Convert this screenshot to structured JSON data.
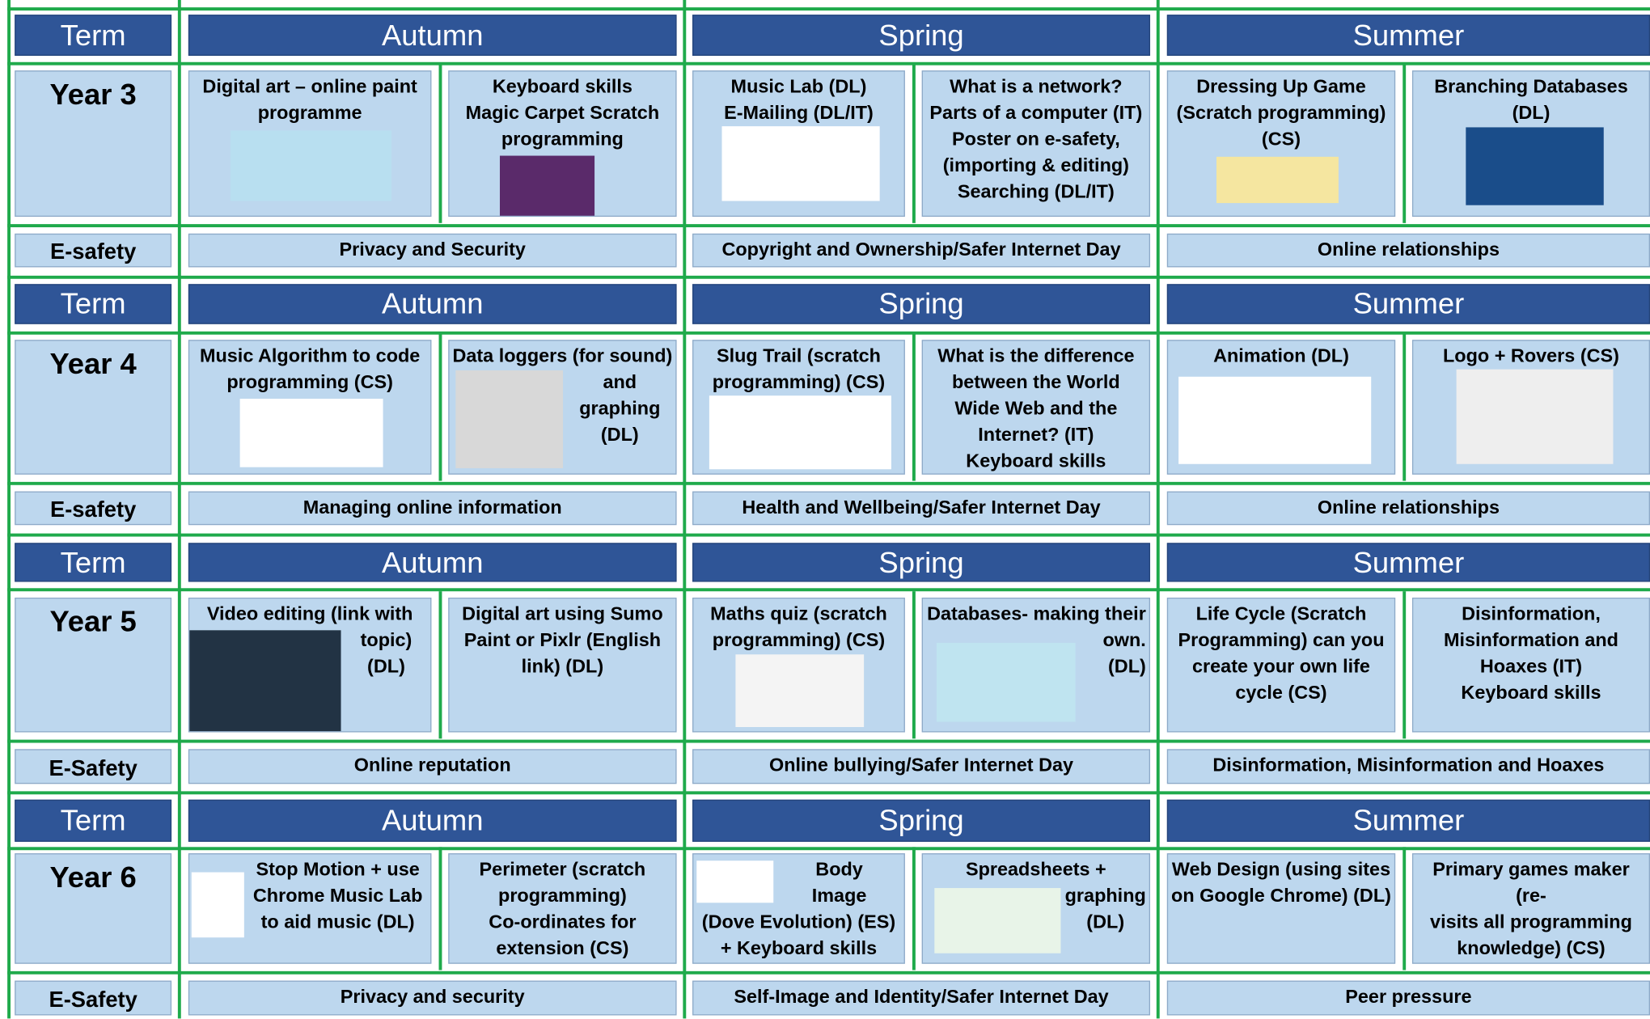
{
  "blocks": [
    {
      "term": "Term",
      "seasons": [
        "Autumn",
        "Spring",
        "Summer"
      ],
      "year": "Year 3",
      "units": [
        [
          "Digital art – online paint",
          "programme"
        ],
        [
          "Keyboard skills",
          "Magic Carpet Scratch",
          "programming"
        ],
        [
          "Music Lab (DL)",
          "E-Mailing (DL/IT)"
        ],
        [
          "What is a network?",
          "Parts of a computer (IT)",
          "Poster on e-safety,",
          "(importing & editing)",
          "Searching (DL/IT)"
        ],
        [
          "Dressing Up Game",
          "(Scratch programming)",
          "(CS)"
        ],
        [
          "Branching Databases",
          "(DL)"
        ]
      ],
      "esafety_label": "E-safety",
      "esafety": [
        "Privacy and Security",
        "Copyright and Ownership/Safer Internet Day",
        "Online relationships"
      ]
    },
    {
      "term": "Term",
      "seasons": [
        "Autumn",
        "Spring",
        "Summer"
      ],
      "year": "Year 4",
      "units": [
        [
          "Music Algorithm to code",
          "programming (CS)"
        ],
        [
          "Data loggers (for sound)",
          "and",
          "graphing",
          "(DL)"
        ],
        [
          "Slug Trail (scratch",
          "programming) (CS)"
        ],
        [
          "What is the difference",
          "between the World",
          "Wide Web and the",
          "Internet? (IT)",
          "Keyboard skills"
        ],
        [
          "Animation (DL)"
        ],
        [
          "Logo + Rovers (CS)"
        ]
      ],
      "esafety_label": "E-safety",
      "esafety": [
        "Managing online information",
        "Health and Wellbeing/Safer Internet Day",
        "Online relationships"
      ]
    },
    {
      "term": "Term",
      "seasons": [
        "Autumn",
        "Spring",
        "Summer"
      ],
      "year": "Year 5",
      "units": [
        [
          "Video editing (link with",
          "topic)",
          "(DL)"
        ],
        [
          "Digital art using Sumo",
          "Paint or Pixlr (English",
          "link) (DL)"
        ],
        [
          "Maths quiz (scratch",
          "programming) (CS)"
        ],
        [
          "Databases- making their",
          "own.",
          "(DL)"
        ],
        [
          "Life Cycle (Scratch",
          "Programming) can you",
          "create your own life",
          "cycle (CS)"
        ],
        [
          "Disinformation,",
          "Misinformation and",
          "Hoaxes (IT)",
          "Keyboard skills"
        ]
      ],
      "esafety_label": "E-Safety",
      "esafety": [
        "Online reputation",
        "Online bullying/Safer Internet Day",
        "Disinformation, Misinformation and Hoaxes"
      ]
    },
    {
      "term": "Term",
      "seasons": [
        "Autumn",
        "Spring",
        "Summer"
      ],
      "year": "Year 6",
      "units": [
        [
          "Stop Motion + use",
          "Chrome Music Lab",
          "to aid music (DL)"
        ],
        [
          "Perimeter (scratch",
          "programming)",
          "Co-ordinates for",
          "extension (CS)"
        ],
        [
          "Body",
          "Image",
          "(Dove Evolution) (ES)",
          "+ Keyboard skills"
        ],
        [
          "Spreadsheets + graphing",
          "(DL)"
        ],
        [
          "Web Design (using sites",
          "on Google Chrome) (DL)"
        ],
        [
          "Primary games maker (re-",
          "visits all programming",
          "knowledge) (CS)"
        ]
      ],
      "esafety_label": "E-Safety",
      "esafety": [
        "Privacy and security",
        "Self-Image and Identity/Safer Internet Day",
        "Peer pressure"
      ]
    }
  ]
}
